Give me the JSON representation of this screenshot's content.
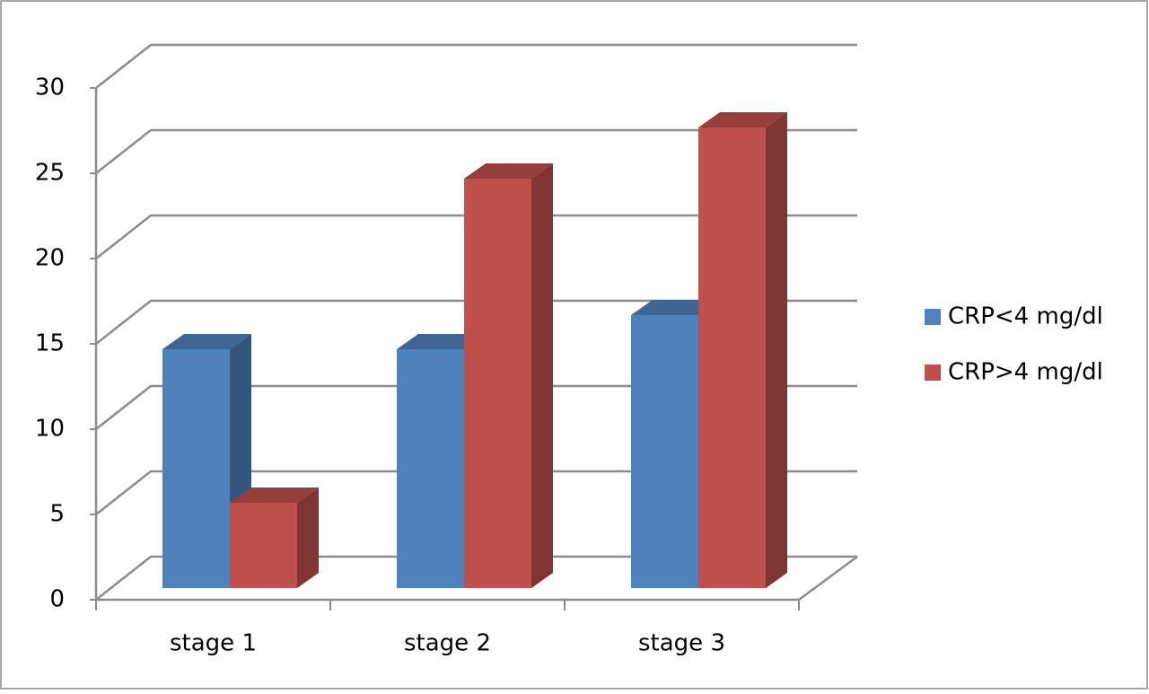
{
  "chart_data": {
    "type": "bar3d",
    "categories": [
      "stage 1",
      "stage 2",
      "stage 3"
    ],
    "series": [
      {
        "name": "CRP<4 mg/dl",
        "color": "#4f81bd",
        "values": [
          14,
          14,
          16
        ]
      },
      {
        "name": "CRP>4 mg/dl",
        "color": "#c0504d",
        "values": [
          5,
          24,
          27
        ]
      }
    ],
    "ylim": [
      0,
      30
    ],
    "yticks": [
      0,
      5,
      10,
      15,
      20,
      25,
      30
    ],
    "grid": true,
    "legend": "right"
  }
}
